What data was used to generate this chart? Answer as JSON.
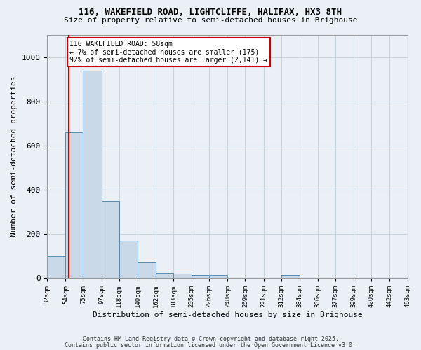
{
  "title1": "116, WAKEFIELD ROAD, LIGHTCLIFFE, HALIFAX, HX3 8TH",
  "title2": "Size of property relative to semi-detached houses in Brighouse",
  "xlabel": "Distribution of semi-detached houses by size in Brighouse",
  "ylabel": "Number of semi-detached properties",
  "bin_edges": [
    32,
    54,
    75,
    97,
    118,
    140,
    162,
    183,
    205,
    226,
    248,
    269,
    291,
    312,
    334,
    356,
    377,
    399,
    420,
    442,
    463
  ],
  "bar_heights": [
    100,
    660,
    940,
    350,
    170,
    70,
    25,
    20,
    15,
    15,
    0,
    0,
    0,
    15,
    0,
    0,
    0,
    0,
    0,
    0
  ],
  "bar_color": "#c9d9e8",
  "bar_edgecolor": "#5a8ab0",
  "grid_color": "#c8d4de",
  "background_color": "#eaf0f6",
  "red_line_x": 58,
  "annotation_text": "116 WAKEFIELD ROAD: 58sqm\n← 7% of semi-detached houses are smaller (175)\n92% of semi-detached houses are larger (2,141) →",
  "annotation_box_color": "#ffffff",
  "annotation_border_color": "#cc0000",
  "ylim": [
    0,
    1100
  ],
  "yticks": [
    0,
    200,
    400,
    600,
    800,
    1000
  ],
  "footer1": "Contains HM Land Registry data © Crown copyright and database right 2025.",
  "footer2": "Contains public sector information licensed under the Open Government Licence v3.0."
}
